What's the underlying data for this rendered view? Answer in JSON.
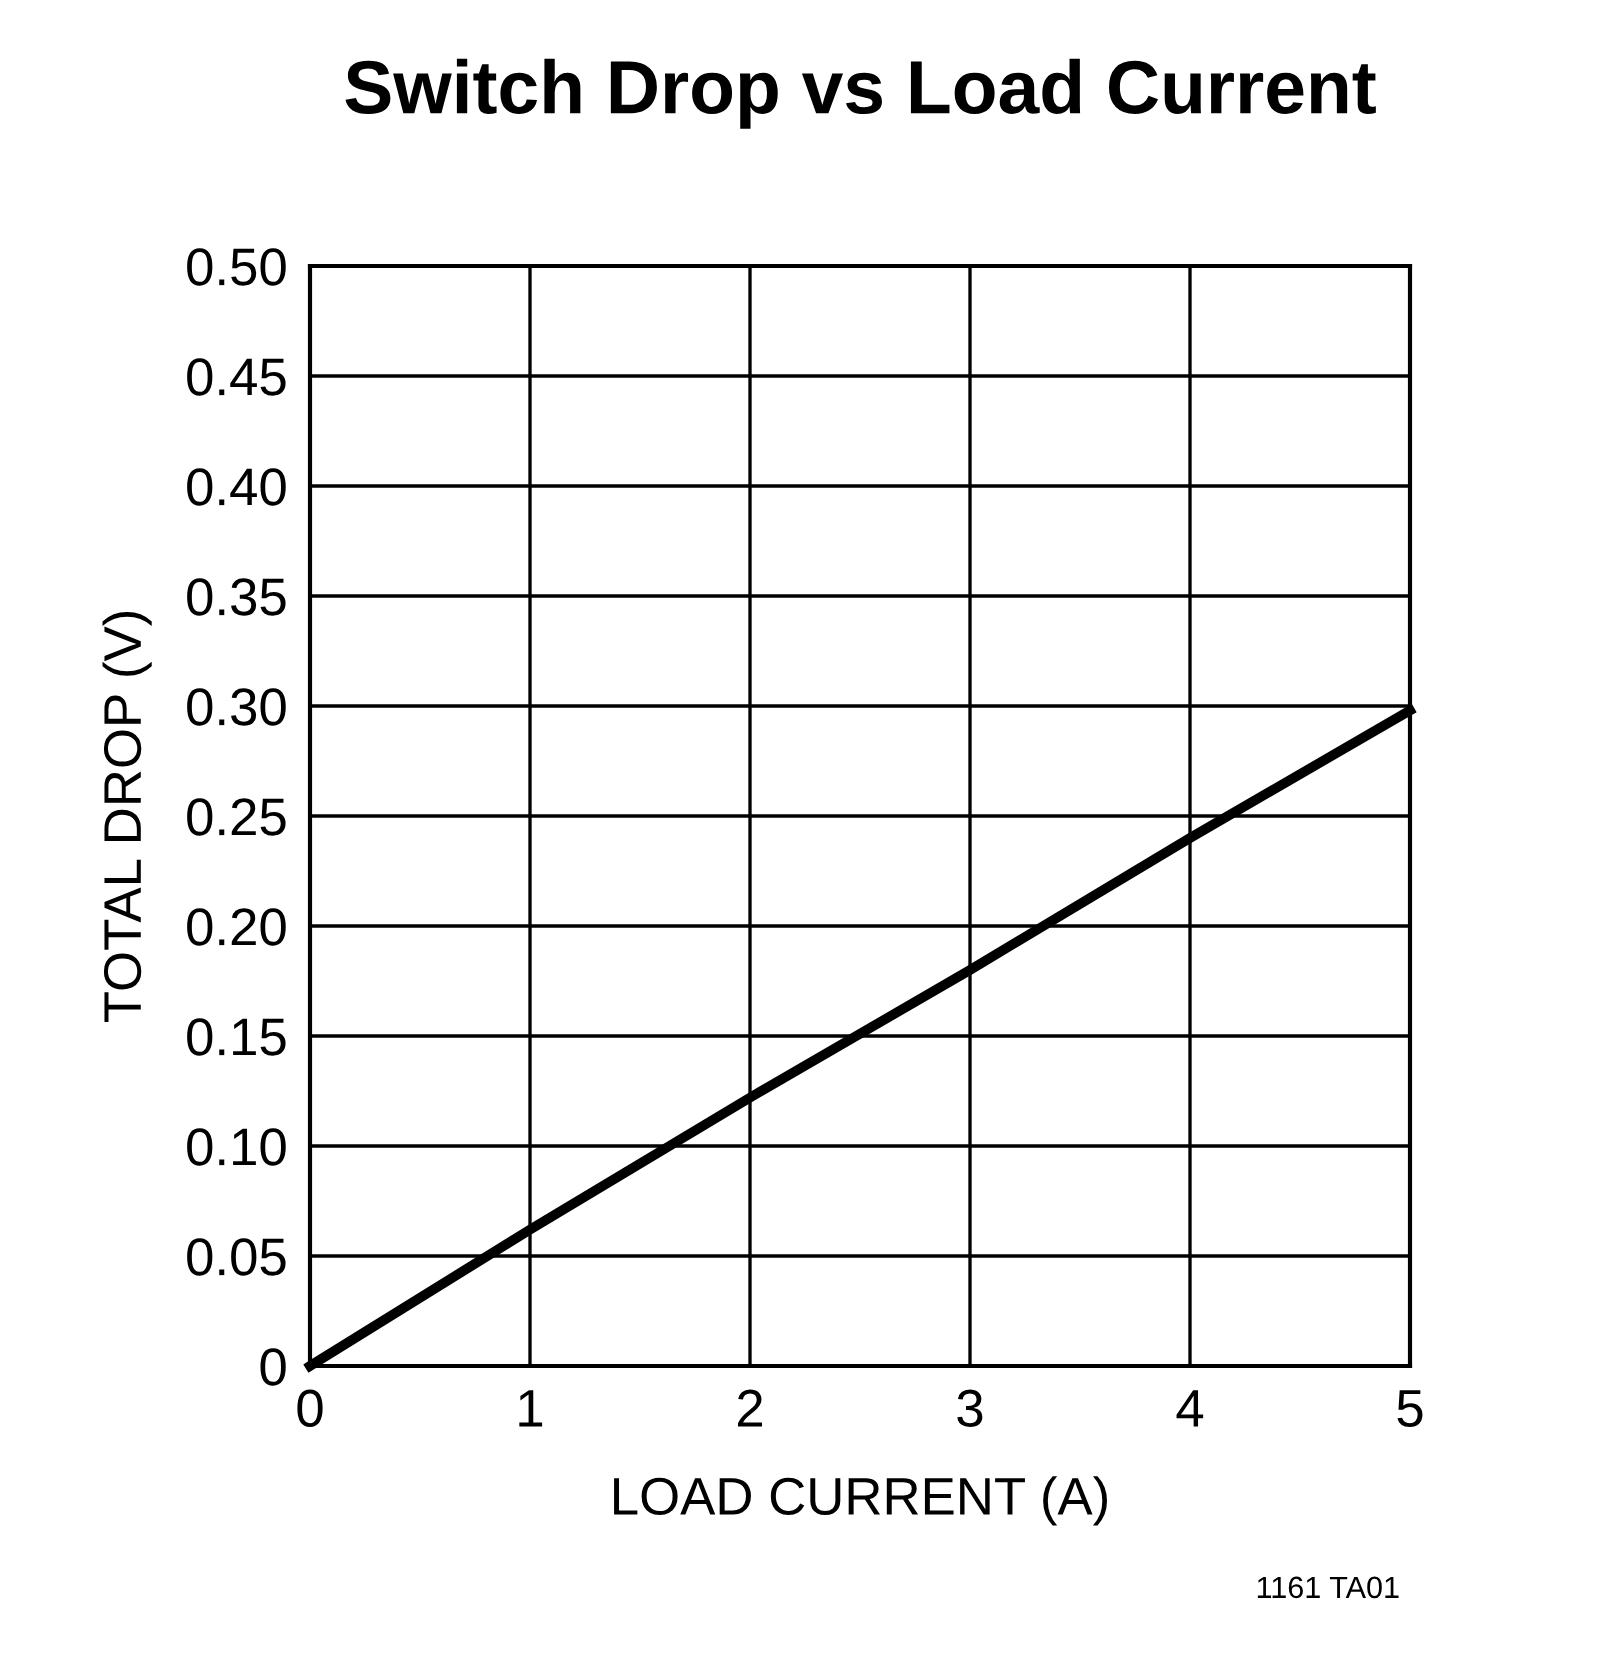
{
  "chart_data": {
    "type": "line",
    "title": "Switch Drop vs Load Current",
    "xlabel": "LOAD CURRENT (A)",
    "ylabel": "TOTAL DROP (V)",
    "x": [
      0,
      1,
      2,
      3,
      4,
      5
    ],
    "series": [
      {
        "color": "#000000",
        "values": [
          0,
          0.062,
          0.122,
          0.18,
          0.24,
          0.298
        ]
      }
    ],
    "xlim": [
      0,
      5
    ],
    "xticks": [
      0,
      1,
      2,
      3,
      4,
      5
    ],
    "ylim": [
      0,
      0.5
    ],
    "yticks": [
      0,
      0.05,
      {
        "value": 0.1,
        "label": "0.10"
      },
      0.15,
      {
        "value": 0.2,
        "label": "0.20"
      },
      0.25,
      {
        "value": 0.3,
        "label": "0.30"
      },
      0.35,
      {
        "value": 0.4,
        "label": "0.40"
      },
      0.45,
      {
        "value": 0.5,
        "label": "0.50"
      }
    ],
    "grid": true,
    "legend": false,
    "marker": "none",
    "line_style": "solid",
    "annotations": [
      "1161 TA01"
    ]
  }
}
